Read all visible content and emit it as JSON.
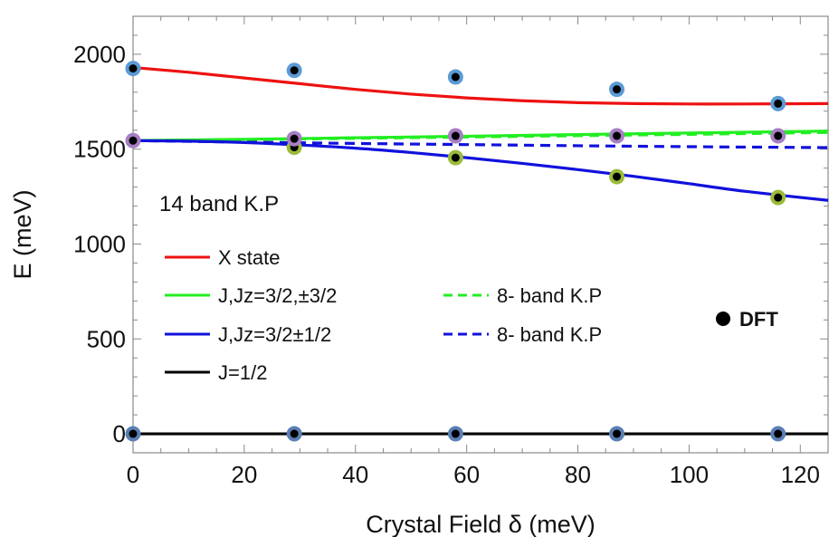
{
  "chart_data": {
    "type": "line",
    "xlabel": "Crystal Field δ (meV)",
    "ylabel": "E (meV)",
    "xlim": [
      0,
      125
    ],
    "ylim": [
      -100,
      2200
    ],
    "xticks": [
      0,
      20,
      40,
      60,
      80,
      100,
      120
    ],
    "xtick_labels": [
      "0",
      "20",
      "40",
      "60",
      "80",
      "100",
      "120"
    ],
    "yticks": [
      0,
      500,
      1000,
      1500,
      2000
    ],
    "ytick_labels": [
      "0",
      "500",
      "1000",
      "1500",
      "2000"
    ],
    "annotation": "14 band K.P",
    "series": [
      {
        "name": "X state",
        "style": "solid",
        "color": "#ee1111",
        "x": [
          0,
          10,
          20,
          30,
          40,
          50,
          60,
          70,
          80,
          90,
          100,
          110,
          125
        ],
        "y": [
          1930,
          1905,
          1875,
          1845,
          1815,
          1790,
          1770,
          1755,
          1745,
          1740,
          1738,
          1738,
          1740
        ]
      },
      {
        "name": "J,Jz=3/2,±3/2",
        "style": "solid",
        "color": "#22ee22",
        "x": [
          0,
          20,
          40,
          60,
          80,
          100,
          125
        ],
        "y": [
          1545,
          1552,
          1560,
          1568,
          1577,
          1585,
          1595
        ]
      },
      {
        "name": "J,Jz=3/2±1/2",
        "style": "solid",
        "color": "#1111dd",
        "x": [
          0,
          10,
          20,
          30,
          40,
          50,
          60,
          70,
          80,
          90,
          100,
          110,
          125
        ],
        "y": [
          1545,
          1542,
          1535,
          1522,
          1505,
          1482,
          1455,
          1425,
          1392,
          1357,
          1318,
          1278,
          1230
        ]
      },
      {
        "name": "J=1/2",
        "style": "solid",
        "color": "#000000",
        "x": [
          0,
          125
        ],
        "y": [
          0,
          0
        ]
      },
      {
        "name": "8- band K.P",
        "style": "dashed",
        "color": "#22ee22",
        "x": [
          0,
          20,
          40,
          60,
          80,
          100,
          125
        ],
        "y": [
          1545,
          1550,
          1557,
          1564,
          1571,
          1578,
          1588
        ]
      },
      {
        "name": "8- band K.P",
        "style": "dashed",
        "color": "#1111dd",
        "x": [
          0,
          20,
          40,
          60,
          80,
          100,
          125
        ],
        "y": [
          1545,
          1537,
          1530,
          1524,
          1518,
          1513,
          1508
        ]
      }
    ],
    "dft": {
      "name": "DFT",
      "groups": [
        {
          "ring": "#5b9bd5",
          "x": [
            0,
            29,
            58,
            87,
            116
          ],
          "y": [
            1925,
            1915,
            1880,
            1815,
            1740
          ]
        },
        {
          "ring": "#9bbb3b",
          "x": [
            29,
            58,
            87,
            116
          ],
          "y": [
            1510,
            1455,
            1355,
            1245
          ]
        },
        {
          "ring": "#a67fc4",
          "x": [
            0,
            29,
            58,
            87,
            116
          ],
          "y": [
            1545,
            1555,
            1570,
            1570,
            1570
          ]
        },
        {
          "ring": "#5b7fb5",
          "x": [
            0,
            29,
            58,
            87,
            116
          ],
          "y": [
            0,
            0,
            0,
            0,
            0
          ]
        }
      ]
    }
  }
}
